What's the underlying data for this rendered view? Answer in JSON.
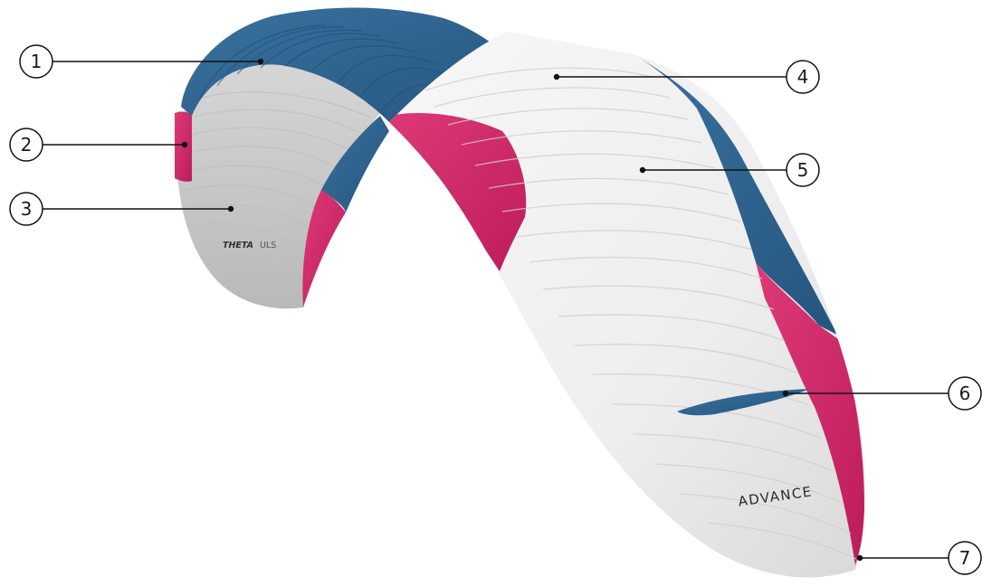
{
  "diagram": {
    "subject": "paraglider-wing",
    "brand_on_underside": {
      "model": "THETA",
      "suffix": "ULS"
    },
    "brand_on_wing": "ADVANCE",
    "callouts": [
      {
        "number": "1"
      },
      {
        "number": "2"
      },
      {
        "number": "3"
      },
      {
        "number": "4"
      },
      {
        "number": "5"
      },
      {
        "number": "6"
      },
      {
        "number": "7"
      }
    ],
    "colors": {
      "blue": "#2d628f",
      "magenta": "#d3276a",
      "white_panel": "#f1f1f1",
      "underside_grey": "#c9c9c9",
      "leader": "#111111"
    }
  }
}
